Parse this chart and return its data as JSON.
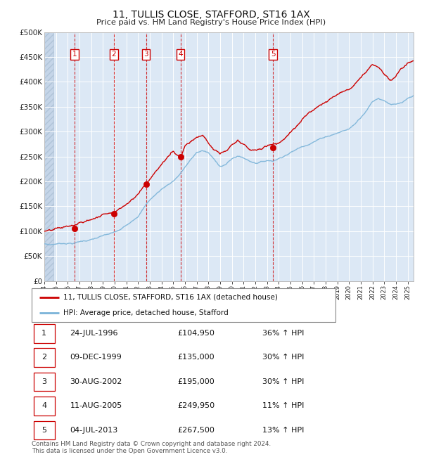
{
  "title": "11, TULLIS CLOSE, STAFFORD, ST16 1AX",
  "subtitle": "Price paid vs. HM Land Registry's House Price Index (HPI)",
  "sales": [
    {
      "num": 1,
      "date": "24-JUL-1996",
      "year": 1996.56,
      "price": 104950,
      "pct": "36%",
      "dir": "↑"
    },
    {
      "num": 2,
      "date": "09-DEC-1999",
      "year": 1999.94,
      "price": 135000,
      "pct": "30%",
      "dir": "↑"
    },
    {
      "num": 3,
      "date": "30-AUG-2002",
      "year": 2002.67,
      "price": 195000,
      "pct": "30%",
      "dir": "↑"
    },
    {
      "num": 4,
      "date": "11-AUG-2005",
      "year": 2005.61,
      "price": 249950,
      "pct": "11%",
      "dir": "↑"
    },
    {
      "num": 5,
      "date": "04-JUL-2013",
      "year": 2013.51,
      "price": 267500,
      "pct": "13%",
      "dir": "↑"
    }
  ],
  "legend_line1": "11, TULLIS CLOSE, STAFFORD, ST16 1AX (detached house)",
  "legend_line2": "HPI: Average price, detached house, Stafford",
  "footer1": "Contains HM Land Registry data © Crown copyright and database right 2024.",
  "footer2": "This data is licensed under the Open Government Licence v3.0.",
  "hpi_color": "#7ab3d8",
  "price_color": "#cc0000",
  "marker_color": "#cc0000",
  "xmin": 1994.0,
  "xmax": 2025.5,
  "ymin": 0,
  "ymax": 500000,
  "yticks": [
    0,
    50000,
    100000,
    150000,
    200000,
    250000,
    300000,
    350000,
    400000,
    450000,
    500000
  ],
  "ytick_labels": [
    "£0",
    "£50K",
    "£100K",
    "£150K",
    "£200K",
    "£250K",
    "£300K",
    "£350K",
    "£400K",
    "£450K",
    "£500K"
  ],
  "plot_bg_color": "#dce8f5",
  "hatch_bg_color": "#c5d5e8"
}
